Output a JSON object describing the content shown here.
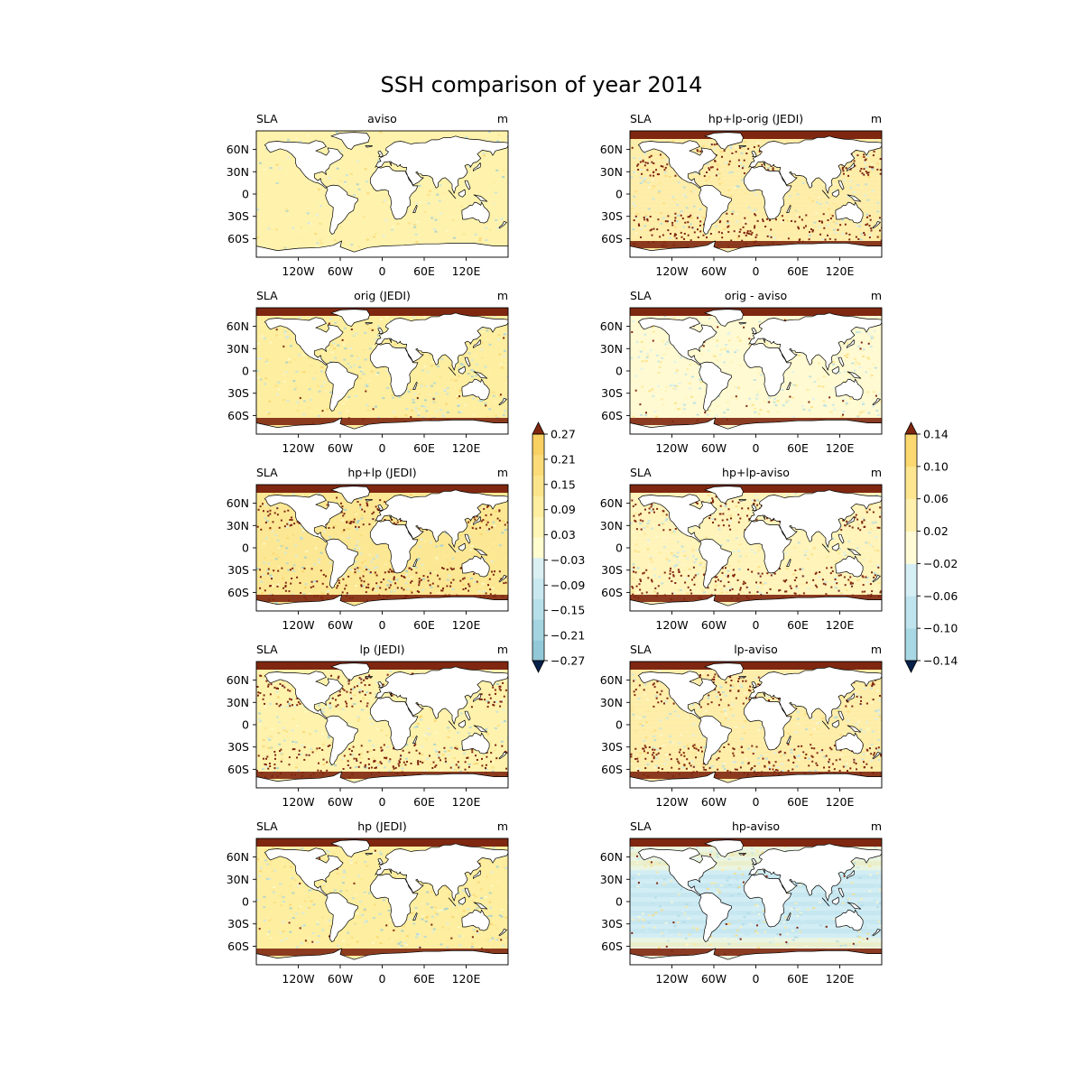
{
  "figure": {
    "title": "SSH comparison of year 2014"
  },
  "colors": {
    "land": "#ffffff",
    "coast": "#000000",
    "ocean_base_left": "#fdeea0",
    "ocean_base_right": "#fff9cc",
    "over_max": "#7f2710",
    "under_min": "#08214b",
    "bands_left": [
      "#92c9d8",
      "#a5d4e1",
      "#b7dfe9",
      "#c9e8ef",
      "#daf0f3",
      "#fffdd0",
      "#fff5b6",
      "#fdeea0",
      "#fce48a",
      "#fbdb77",
      "#f9d062"
    ],
    "bands_right": [
      "#a9d8e5",
      "#bfe4ee",
      "#d6eff5",
      "#fffbd6",
      "#fff1ad",
      "#fde68f",
      "#fcd970"
    ]
  },
  "axes": {
    "lat_ticks": [
      "60N",
      "30N",
      "0",
      "30S",
      "60S"
    ],
    "lon_ticks": [
      "120W",
      "60W",
      "0",
      "60E",
      "120E"
    ]
  },
  "panels": [
    {
      "id": "aviso",
      "left": "SLA",
      "title": "aviso",
      "right": "m",
      "column": "left",
      "pattern": "smooth"
    },
    {
      "id": "orig-jedi",
      "left": "SLA",
      "title": "orig (JEDI)",
      "right": "m",
      "column": "left",
      "pattern": "polar"
    },
    {
      "id": "hplp-jedi",
      "left": "SLA",
      "title": "hp+lp (JEDI)",
      "right": "m",
      "column": "left",
      "pattern": "noisy"
    },
    {
      "id": "lp-jedi",
      "left": "SLA",
      "title": "lp (JEDI)",
      "right": "m",
      "column": "left",
      "pattern": "noisy"
    },
    {
      "id": "hp-jedi",
      "left": "SLA",
      "title": "hp (JEDI)",
      "right": "m",
      "column": "left",
      "pattern": "polar"
    },
    {
      "id": "hplp-orig-jedi",
      "left": "SLA",
      "title": "hp+lp-orig (JEDI)",
      "right": "m",
      "column": "right",
      "pattern": "noisy"
    },
    {
      "id": "orig-aviso",
      "left": "SLA",
      "title": "orig - aviso",
      "right": "m",
      "column": "right",
      "pattern": "polar"
    },
    {
      "id": "hplp-aviso",
      "left": "SLA",
      "title": "hp+lp-aviso",
      "right": "m",
      "column": "right",
      "pattern": "noisy"
    },
    {
      "id": "lp-aviso",
      "left": "SLA",
      "title": "lp-aviso",
      "right": "m",
      "column": "right",
      "pattern": "noisy"
    },
    {
      "id": "hp-aviso",
      "left": "SLA",
      "title": "hp-aviso",
      "right": "m",
      "column": "right",
      "pattern": "blue"
    }
  ],
  "colorbars": [
    {
      "id": "left",
      "min": -0.27,
      "max": 0.27,
      "extend": "both",
      "tick_labels": [
        "0.27",
        "0.21",
        "0.15",
        "0.09",
        "0.03",
        "−0.03",
        "−0.09",
        "−0.15",
        "−0.21",
        "−0.27"
      ]
    },
    {
      "id": "right",
      "min": -0.14,
      "max": 0.14,
      "extend": "both",
      "tick_labels": [
        "0.14",
        "0.10",
        "0.06",
        "0.02",
        "−0.02",
        "−0.06",
        "−0.10",
        "−0.14"
      ]
    }
  ]
}
